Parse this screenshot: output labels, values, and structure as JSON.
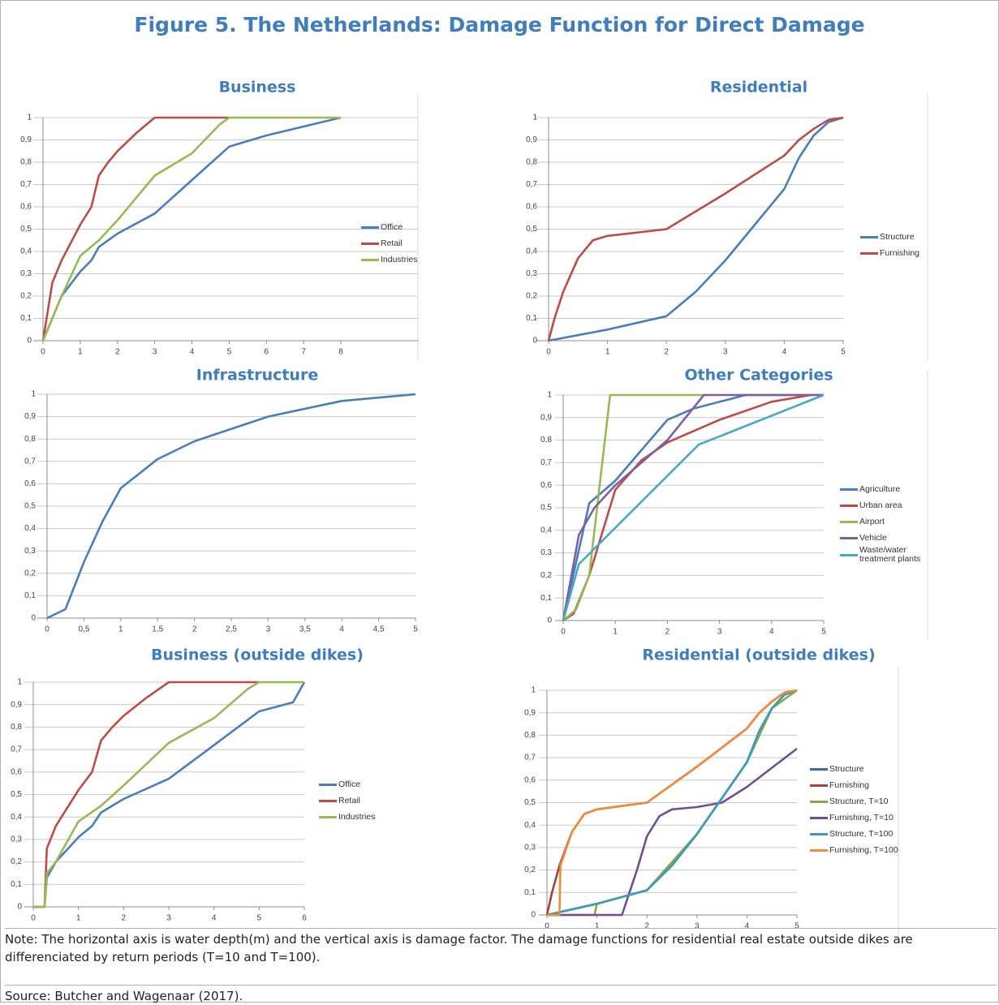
{
  "title": "Figure 5. The Netherlands: Damage Function for Direct Damage",
  "note": "Note: The horizontal axis is water depth(m) and the vertical axis is damage factor. The damage functions for residential real estate outside dikes are differenciated by return periods (T=10 and T=100).",
  "source": "Source:  Butcher and Wagenaar (2017).",
  "chart_data": [
    {
      "type": "line",
      "title": "Business",
      "xlim": [
        0,
        8
      ],
      "xticks": [
        0,
        1,
        2,
        3,
        4,
        5,
        6,
        7,
        8
      ],
      "ylim": [
        0,
        1
      ],
      "yticks": [
        0,
        {
          "value": 0.1,
          "label": "0,1"
        },
        {
          "value": 0.2,
          "label": "0,2"
        },
        {
          "value": 0.3,
          "label": "0,3"
        },
        {
          "value": 0.4,
          "label": "0,4"
        },
        {
          "value": 0.5,
          "label": "0,5"
        },
        {
          "value": 0.6,
          "label": "0,6"
        },
        {
          "value": 0.7,
          "label": "0,7"
        },
        {
          "value": 0.8,
          "label": "0,8"
        },
        {
          "value": 0.9,
          "label": "0,9"
        },
        1
      ],
      "grid": true,
      "series": [
        {
          "name": "Office",
          "color": "#4a7ebb",
          "x": [
            0,
            0.5,
            1,
            1.3,
            1.5,
            2,
            3,
            4,
            5,
            6,
            6.5,
            7,
            8
          ],
          "values": [
            0,
            0.2,
            0.31,
            0.36,
            0.42,
            0.48,
            0.57,
            0.72,
            0.87,
            0.92,
            0.94,
            0.96,
            1
          ]
        },
        {
          "name": "Retail",
          "color": "#be4b48",
          "x": [
            0,
            0.25,
            0.5,
            1,
            1.3,
            1.5,
            1.75,
            2,
            2.5,
            3,
            5
          ],
          "values": [
            0,
            0.26,
            0.36,
            0.52,
            0.6,
            0.74,
            0.8,
            0.85,
            0.93,
            1,
            1
          ]
        },
        {
          "name": "Industries",
          "color": "#98b954",
          "x": [
            0,
            0.5,
            1,
            1.5,
            2,
            3,
            4,
            4.75,
            5,
            8
          ],
          "values": [
            0,
            0.2,
            0.38,
            0.45,
            0.54,
            0.74,
            0.84,
            0.97,
            1,
            1
          ]
        }
      ]
    },
    {
      "type": "line",
      "title": "Residential",
      "xlim": [
        0,
        5
      ],
      "xticks": [
        0,
        1,
        2,
        3,
        4,
        5
      ],
      "ylim": [
        0,
        1
      ],
      "yticks": [
        0,
        {
          "value": 0.1,
          "label": "0,1"
        },
        {
          "value": 0.2,
          "label": "0,2"
        },
        {
          "value": 0.3,
          "label": "0,3"
        },
        {
          "value": 0.4,
          "label": "0,4"
        },
        {
          "value": 0.5,
          "label": "0,5"
        },
        {
          "value": 0.6,
          "label": "0,6"
        },
        {
          "value": 0.7,
          "label": "0,7"
        },
        {
          "value": 0.8,
          "label": "0,8"
        },
        {
          "value": 0.9,
          "label": "0,9"
        },
        1
      ],
      "grid": true,
      "series": [
        {
          "name": "Structure",
          "color": "#4a7ebb",
          "x": [
            0,
            1,
            2,
            2.5,
            3,
            3.5,
            4,
            4.25,
            4.5,
            4.75,
            5
          ],
          "values": [
            0,
            0.05,
            0.11,
            0.22,
            0.36,
            0.52,
            0.68,
            0.82,
            0.92,
            0.98,
            1
          ]
        },
        {
          "name": "Furnishing",
          "color": "#be4b48",
          "x": [
            0,
            0.1,
            0.25,
            0.5,
            0.75,
            1,
            2,
            3,
            4,
            4.25,
            4.5,
            4.75,
            5
          ],
          "values": [
            0,
            0.1,
            0.22,
            0.37,
            0.45,
            0.47,
            0.5,
            0.66,
            0.83,
            0.9,
            0.95,
            0.99,
            1
          ]
        }
      ]
    },
    {
      "type": "line",
      "title": "Infrastructure",
      "xlim": [
        0,
        5
      ],
      "xticks": [
        0,
        {
          "value": 0.5,
          "label": "0,5"
        },
        1,
        {
          "value": 1.5,
          "label": "1,5"
        },
        2,
        {
          "value": 2.5,
          "label": "2,5"
        },
        3,
        {
          "value": 3.5,
          "label": "3,5"
        },
        4,
        {
          "value": 4.5,
          "label": "4,5"
        },
        5
      ],
      "ylim": [
        0,
        1
      ],
      "yticks": [
        0,
        {
          "value": 0.1,
          "label": "0,1"
        },
        {
          "value": 0.2,
          "label": "0,2"
        },
        {
          "value": 0.3,
          "label": "0,3"
        },
        {
          "value": 0.4,
          "label": "0,4"
        },
        {
          "value": 0.5,
          "label": "0,5"
        },
        {
          "value": 0.6,
          "label": "0,6"
        },
        {
          "value": 0.7,
          "label": "0,7"
        },
        {
          "value": 0.8,
          "label": "0,8"
        },
        {
          "value": 0.9,
          "label": "0,9"
        },
        1
      ],
      "grid": true,
      "series": [
        {
          "color": "#4a7ebb",
          "x": [
            0,
            0.25,
            0.5,
            0.75,
            1,
            1.5,
            2,
            3,
            4,
            5
          ],
          "values": [
            0,
            0.04,
            0.25,
            0.43,
            0.58,
            0.71,
            0.79,
            0.9,
            0.97,
            1
          ]
        }
      ]
    },
    {
      "type": "line",
      "title": "Other Categories",
      "xlim": [
        0,
        5
      ],
      "xticks": [
        0,
        1,
        2,
        3,
        4,
        5
      ],
      "ylim": [
        0,
        1
      ],
      "yticks": [
        0,
        {
          "value": 0.1,
          "label": "0,1"
        },
        {
          "value": 0.2,
          "label": "0,2"
        },
        {
          "value": 0.3,
          "label": "0,3"
        },
        {
          "value": 0.4,
          "label": "0,4"
        },
        {
          "value": 0.5,
          "label": "0,5"
        },
        {
          "value": 0.6,
          "label": "0,6"
        },
        {
          "value": 0.7,
          "label": "0,7"
        },
        {
          "value": 0.8,
          "label": "0,8"
        },
        {
          "value": 0.9,
          "label": "0,9"
        },
        1
      ],
      "grid": true,
      "series": [
        {
          "name": "Agriculture",
          "color": "#4a7ebb",
          "x": [
            0,
            0.5,
            1,
            2,
            2.5,
            3.5,
            5
          ],
          "values": [
            0,
            0.52,
            0.62,
            0.89,
            0.94,
            1,
            1
          ]
        },
        {
          "name": "Urban area",
          "color": "#be4b48",
          "x": [
            0,
            0.2,
            0.5,
            1,
            1.5,
            2,
            3,
            4,
            4.75
          ],
          "values": [
            0,
            0.03,
            0.2,
            0.58,
            0.71,
            0.79,
            0.89,
            0.97,
            1
          ]
        },
        {
          "name": "Airport",
          "color": "#98b954",
          "x": [
            0,
            0.25,
            0.5,
            0.9,
            2.7
          ],
          "values": [
            0,
            0.05,
            0.2,
            1,
            1
          ]
        },
        {
          "name": "Vehicle",
          "color": "#7d60a0",
          "x": [
            0,
            0.3,
            0.6,
            1,
            2,
            2.7,
            5
          ],
          "values": [
            0,
            0.38,
            0.5,
            0.6,
            0.8,
            1,
            1
          ]
        },
        {
          "name": "Waste/water treatment plants",
          "color": "#46aac5",
          "x": [
            0,
            0.3,
            2.6,
            5
          ],
          "values": [
            0,
            0.25,
            0.78,
            1
          ]
        }
      ]
    },
    {
      "type": "line",
      "title": "Business (outside dikes)",
      "xlim": [
        0,
        6
      ],
      "xticks": [
        0,
        1,
        2,
        3,
        4,
        5,
        6
      ],
      "ylim": [
        0,
        1
      ],
      "yticks": [
        0,
        {
          "value": 0.1,
          "label": "0,1"
        },
        {
          "value": 0.2,
          "label": "0,2"
        },
        {
          "value": 0.3,
          "label": "0,3"
        },
        {
          "value": 0.4,
          "label": "0,4"
        },
        {
          "value": 0.5,
          "label": "0,5"
        },
        {
          "value": 0.6,
          "label": "0,6"
        },
        {
          "value": 0.7,
          "label": "0,7"
        },
        {
          "value": 0.8,
          "label": "0,8"
        },
        {
          "value": 0.9,
          "label": "0,9"
        },
        1
      ],
      "grid": true,
      "series": [
        {
          "name": "Office",
          "color": "#4a7ebb",
          "x": [
            0,
            0.25,
            0.3,
            0.5,
            1,
            1.3,
            1.5,
            2,
            3,
            4,
            5,
            5.75,
            6
          ],
          "values": [
            0,
            0,
            0.13,
            0.2,
            0.31,
            0.36,
            0.42,
            0.48,
            0.57,
            0.72,
            0.87,
            0.91,
            1
          ]
        },
        {
          "name": "Retail",
          "color": "#be4b48",
          "x": [
            0,
            0.25,
            0.3,
            0.5,
            1,
            1.3,
            1.5,
            1.75,
            2,
            2.5,
            3,
            5
          ],
          "values": [
            0,
            0,
            0.26,
            0.36,
            0.52,
            0.6,
            0.74,
            0.8,
            0.85,
            0.93,
            1,
            1
          ]
        },
        {
          "name": "Industries",
          "color": "#98b954",
          "x": [
            0,
            0.25,
            0.3,
            0.5,
            1,
            1.5,
            2,
            3,
            4,
            4.75,
            5,
            6
          ],
          "values": [
            0,
            0,
            0.15,
            0.2,
            0.38,
            0.45,
            0.54,
            0.73,
            0.84,
            0.97,
            1,
            1
          ]
        }
      ]
    },
    {
      "type": "line",
      "title": "Residential (outside dikes)",
      "xlim": [
        0,
        5
      ],
      "xticks": [
        0,
        1,
        2,
        3,
        4,
        5
      ],
      "ylim": [
        0,
        1
      ],
      "yticks": [
        0,
        {
          "value": 0.1,
          "label": "0,1"
        },
        {
          "value": 0.2,
          "label": "0,2"
        },
        {
          "value": 0.3,
          "label": "0,3"
        },
        {
          "value": 0.4,
          "label": "0,4"
        },
        {
          "value": 0.5,
          "label": "0,5"
        },
        {
          "value": 0.6,
          "label": "0,6"
        },
        {
          "value": 0.7,
          "label": "0,7"
        },
        {
          "value": 0.8,
          "label": "0,8"
        },
        {
          "value": 0.9,
          "label": "0,9"
        },
        1
      ],
      "grid": true,
      "series": [
        {
          "name": "Structure",
          "color": "#3a6aa8",
          "x": [
            0,
            1,
            2,
            2.5,
            3,
            3.5,
            4,
            4.25,
            4.5,
            4.75,
            5
          ],
          "values": [
            0,
            0.05,
            0.11,
            0.22,
            0.36,
            0.52,
            0.68,
            0.82,
            0.92,
            0.98,
            1
          ]
        },
        {
          "name": "Furnishing",
          "color": "#a8403d",
          "x": [
            0,
            0.1,
            0.25,
            0.5,
            0.75,
            1,
            2,
            3,
            4,
            4.25,
            4.5,
            4.75,
            5
          ],
          "values": [
            0,
            0.1,
            0.22,
            0.37,
            0.45,
            0.47,
            0.5,
            0.66,
            0.83,
            0.9,
            0.95,
            0.99,
            1
          ]
        },
        {
          "name": "Structure, T=10",
          "color": "#8aa84a",
          "x": [
            0,
            0.95,
            1,
            2,
            3,
            4,
            4.5,
            5
          ],
          "values": [
            0,
            0,
            0.05,
            0.11,
            0.36,
            0.68,
            0.92,
            1
          ]
        },
        {
          "name": "Furnishing, T=10",
          "color": "#6f4e94",
          "x": [
            0,
            1.5,
            1.8,
            2,
            2.25,
            2.5,
            3,
            3.5,
            4,
            5
          ],
          "values": [
            0,
            0,
            0.2,
            0.35,
            0.44,
            0.47,
            0.48,
            0.5,
            0.57,
            0.74
          ]
        },
        {
          "name": "Structure, T=100",
          "color": "#3c9cb6",
          "x": [
            0,
            1,
            2,
            2.5,
            3,
            3.5,
            4,
            4.25,
            4.5,
            4.75,
            5
          ],
          "values": [
            0,
            0.05,
            0.11,
            0.22,
            0.36,
            0.52,
            0.68,
            0.82,
            0.92,
            0.98,
            1
          ]
        },
        {
          "name": "Furnishing, T=100",
          "color": "#f08a3c",
          "x": [
            0,
            0.25,
            0.27,
            0.5,
            0.75,
            1,
            2,
            3,
            4,
            4.25,
            4.5,
            4.75,
            5
          ],
          "values": [
            0,
            0,
            0.22,
            0.37,
            0.45,
            0.47,
            0.5,
            0.66,
            0.83,
            0.9,
            0.95,
            0.99,
            1
          ]
        }
      ]
    }
  ]
}
